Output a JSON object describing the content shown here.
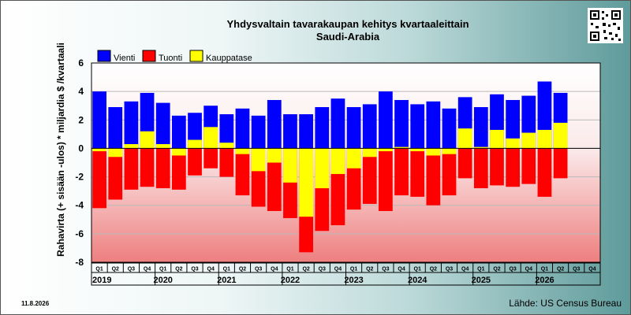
{
  "title": "Yhdysvaltain tavarakaupan kehitys kvartaaleittain",
  "subtitle": "Saudi-Arabia",
  "date": "11.8.2026",
  "source": "Lähde: US Census Bureau",
  "ylabel": "Rahavirta (+ sisään -ulos)  * miljardia $ /kvartaali",
  "colors": {
    "vienti": "#0000ff",
    "tuonti": "#ff0000",
    "kauppatase": "#ffff00"
  },
  "chart_data": {
    "type": "bar",
    "ylim": [
      -8,
      6
    ],
    "yticks": [
      6,
      4,
      2,
      0,
      -2,
      -4,
      -6,
      -8
    ],
    "grid": true,
    "legend_position": "top-left",
    "quarter_labels": [
      "Q1",
      "Q2",
      "Q3",
      "Q4",
      "Q1",
      "Q2",
      "Q3",
      "Q4",
      "Q1",
      "Q2",
      "Q3",
      "Q4",
      "Q1",
      "Q2",
      "Q3",
      "Q4",
      "Q1",
      "Q2",
      "Q3",
      "Q4",
      "Q1",
      "Q2",
      "Q3",
      "Q4",
      "Q1",
      "Q2",
      "Q3",
      "Q4",
      "Q1",
      "Q2",
      "Q3",
      "Q4"
    ],
    "years": [
      "2019",
      "2020",
      "2021",
      "2022",
      "2023",
      "2024",
      "2025",
      "2026"
    ],
    "series": [
      {
        "name": "Vienti",
        "values": [
          4.0,
          2.9,
          3.3,
          3.9,
          3.2,
          2.3,
          2.5,
          3.0,
          2.4,
          2.8,
          2.3,
          3.4,
          2.4,
          2.4,
          2.9,
          3.5,
          2.9,
          3.1,
          4.0,
          3.4,
          3.1,
          3.3,
          2.8,
          3.6,
          2.9,
          3.8,
          3.4,
          3.7,
          4.7,
          3.9,
          null,
          null
        ]
      },
      {
        "name": "Tuonti",
        "values": [
          -4.2,
          -3.6,
          -2.9,
          -2.7,
          -2.8,
          -2.9,
          -1.9,
          -1.4,
          -2.0,
          -3.3,
          -4.1,
          -4.4,
          -4.9,
          -7.3,
          -5.8,
          -5.4,
          -4.3,
          -3.9,
          -4.4,
          -3.3,
          -3.4,
          -4.0,
          -3.3,
          -2.1,
          -2.8,
          -2.6,
          -2.7,
          -2.5,
          -3.4,
          -2.1,
          null,
          null
        ]
      },
      {
        "name": "Kauppatase",
        "values": [
          -0.2,
          -0.6,
          0.3,
          1.2,
          0.3,
          -0.5,
          0.6,
          1.5,
          0.4,
          -0.4,
          -1.6,
          -1.0,
          -2.4,
          -4.8,
          -2.8,
          -1.8,
          -1.4,
          -0.6,
          -0.2,
          0.1,
          -0.2,
          -0.5,
          -0.4,
          1.4,
          0.1,
          1.3,
          0.7,
          1.1,
          1.3,
          1.8,
          null,
          null
        ]
      }
    ]
  }
}
